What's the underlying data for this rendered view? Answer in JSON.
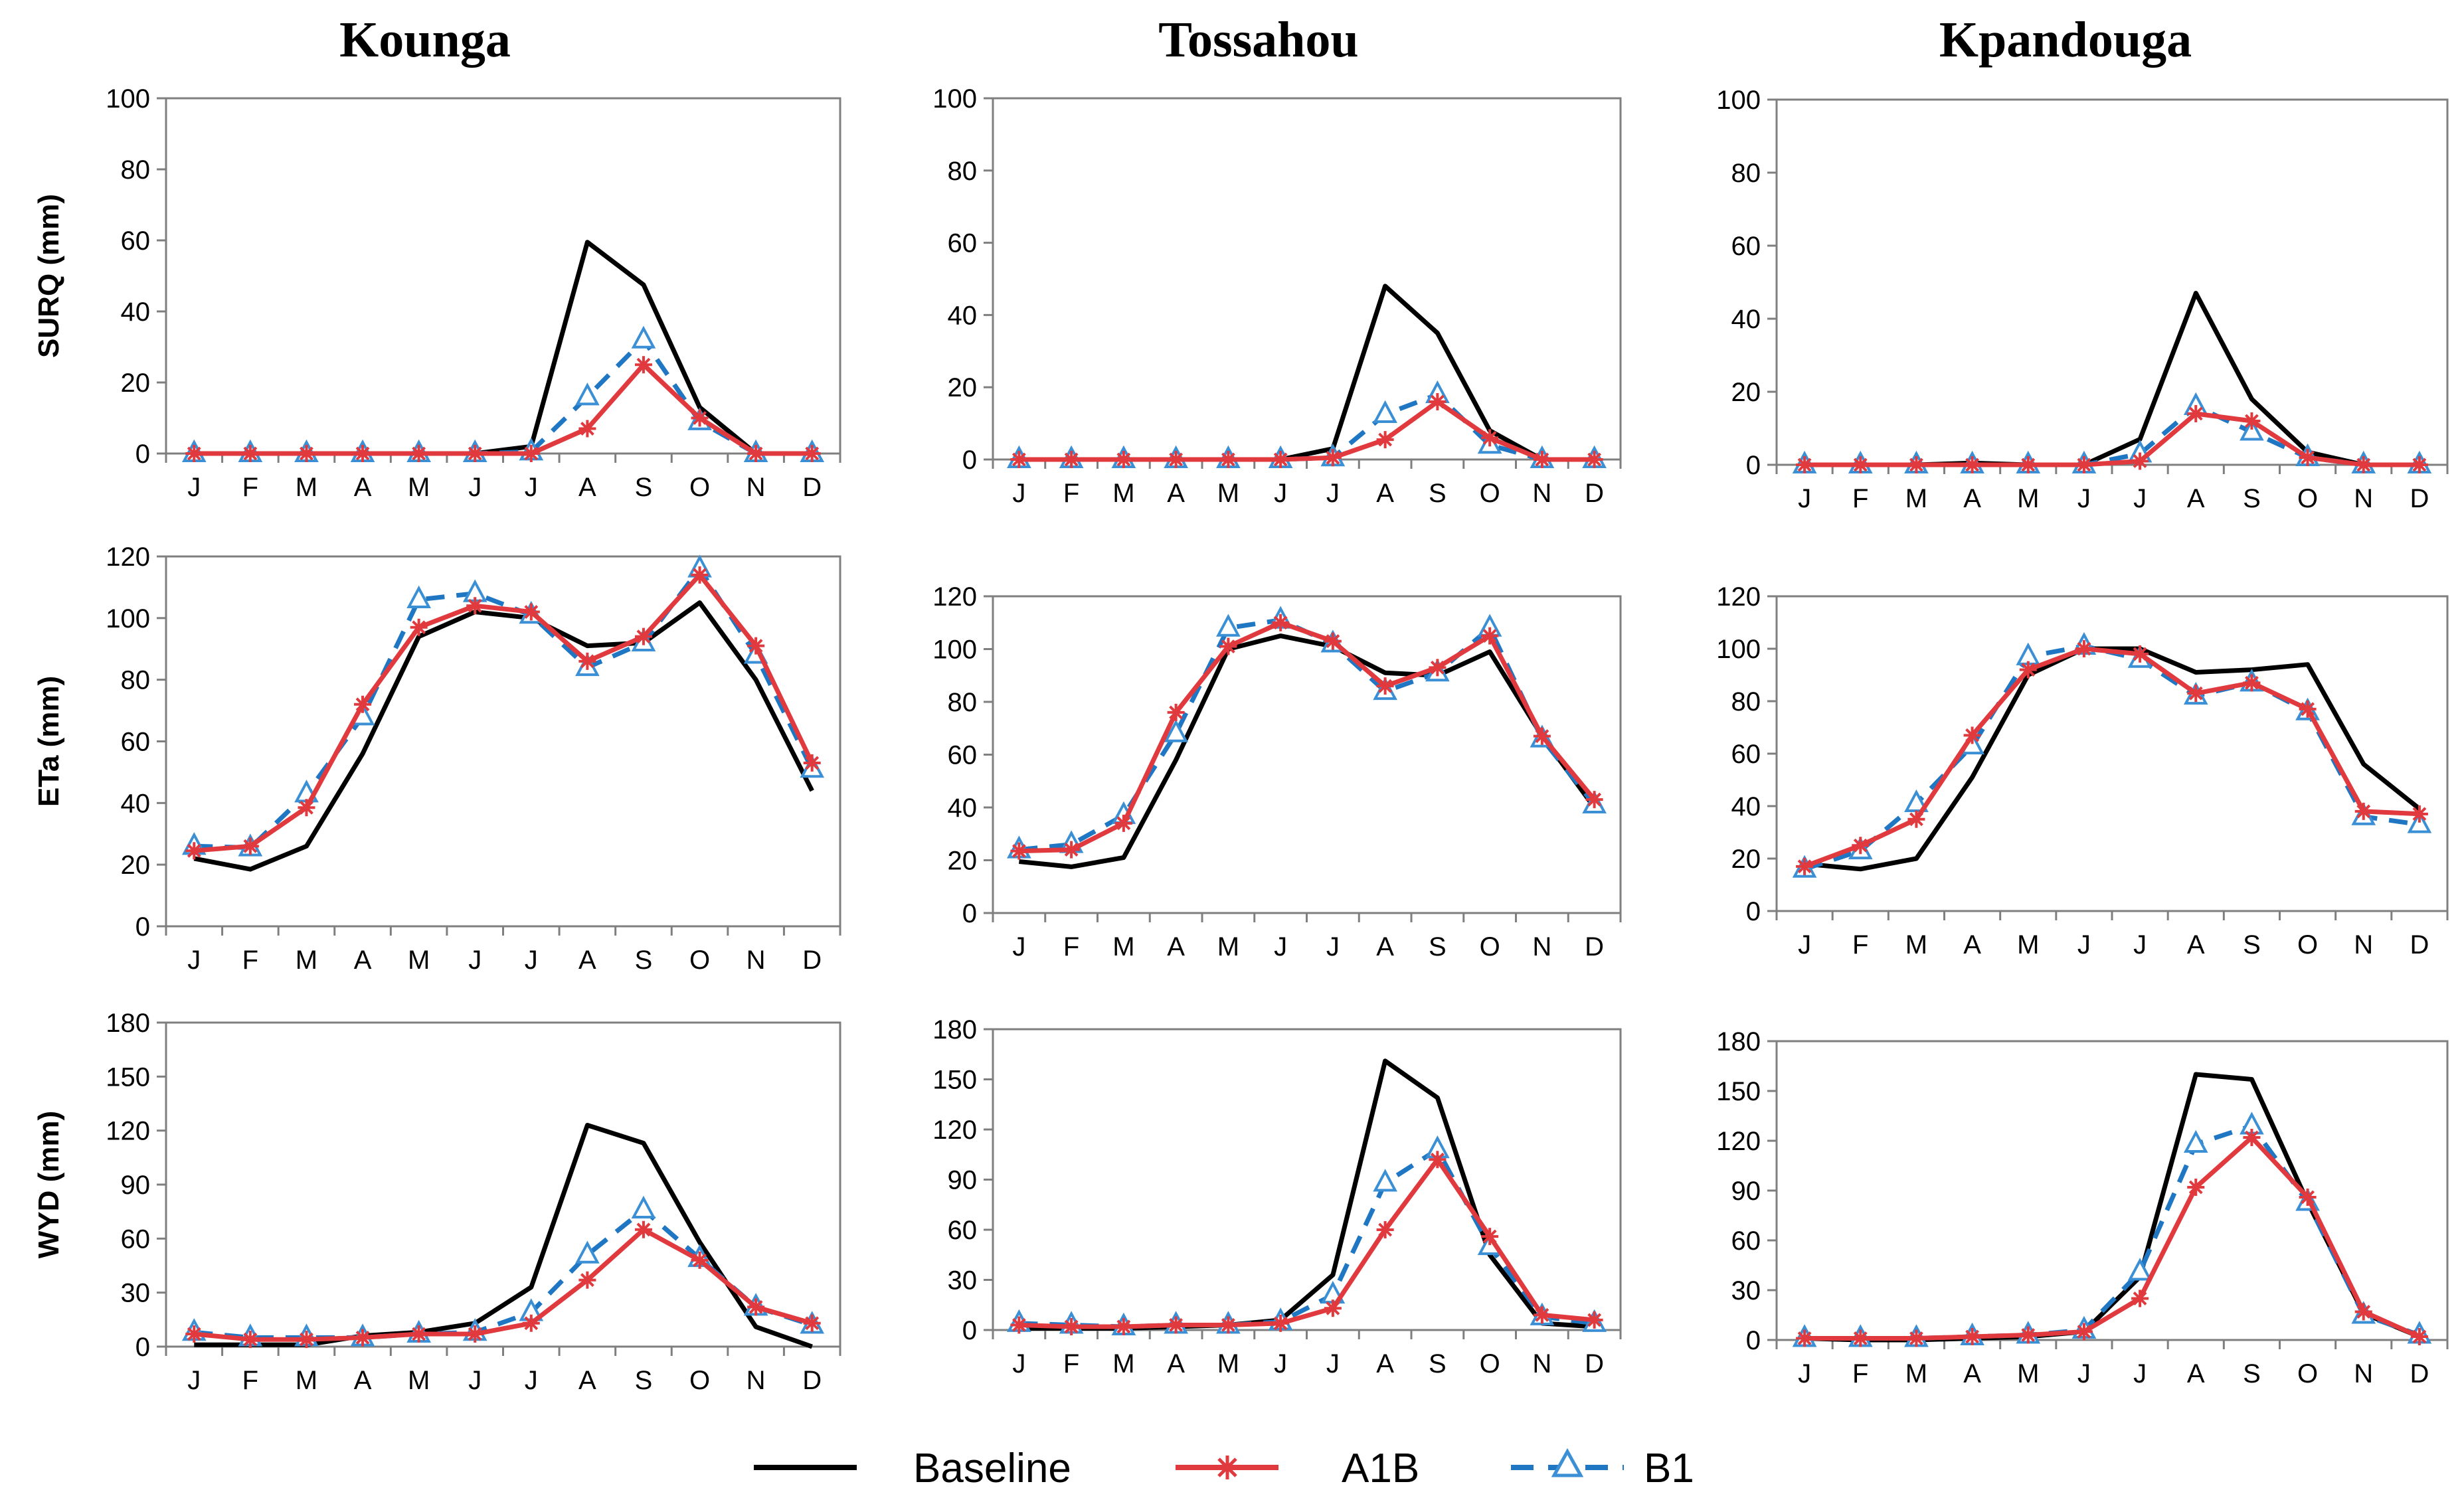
{
  "legend": {
    "entries": [
      {
        "key": "baseline",
        "label": "Baseline"
      },
      {
        "key": "a1b",
        "label": "A1B"
      },
      {
        "key": "b1",
        "label": "B1"
      }
    ]
  },
  "colors": {
    "baseline": "#000000",
    "a1b": "#e0393e",
    "b1": "#1f77c4"
  },
  "column_titles": [
    "Kounga",
    "Tossahou",
    "Kpandouga"
  ],
  "row_labels": [
    "SURQ (mm)",
    "ETa (mm)",
    "WYD (mm)"
  ],
  "chart_data": [
    {
      "type": "line",
      "station": "Kounga",
      "variable": "SURQ",
      "ylabel": "SURQ (mm)",
      "categories": [
        "J",
        "F",
        "M",
        "A",
        "M",
        "J",
        "J",
        "A",
        "S",
        "O",
        "N",
        "D"
      ],
      "ylim": [
        0,
        100
      ],
      "yticks": [
        0,
        20,
        40,
        60,
        80,
        100
      ],
      "series": [
        {
          "name": "Baseline",
          "values": [
            0,
            0,
            0,
            0,
            0,
            0,
            2,
            59.5,
            47.5,
            13,
            0,
            0
          ]
        },
        {
          "name": "A1B",
          "values": [
            0,
            0,
            0,
            0,
            0,
            0,
            0,
            7,
            25,
            10,
            0,
            0
          ]
        },
        {
          "name": "B1",
          "values": [
            0,
            0,
            0,
            0,
            0,
            0,
            0.5,
            16,
            32,
            9,
            0,
            0
          ]
        }
      ]
    },
    {
      "type": "line",
      "station": "Tossahou",
      "variable": "SURQ",
      "ylabel": "",
      "categories": [
        "J",
        "F",
        "M",
        "A",
        "M",
        "J",
        "J",
        "A",
        "S",
        "O",
        "N",
        "D"
      ],
      "ylim": [
        0,
        100
      ],
      "yticks": [
        0,
        20,
        40,
        60,
        80,
        100
      ],
      "series": [
        {
          "name": "Baseline",
          "values": [
            0,
            0,
            0,
            0,
            0,
            0,
            3,
            48,
            35,
            8,
            0,
            0
          ]
        },
        {
          "name": "A1B",
          "values": [
            0,
            0,
            0,
            0,
            0,
            0,
            0.5,
            5.5,
            16,
            6,
            0,
            0
          ]
        },
        {
          "name": "B1",
          "values": [
            0,
            0,
            0,
            0,
            0,
            0,
            0.5,
            12.5,
            18,
            4,
            0,
            0
          ]
        }
      ]
    },
    {
      "type": "line",
      "station": "Kpandouga",
      "variable": "SURQ",
      "ylabel": "",
      "categories": [
        "J",
        "F",
        "M",
        "A",
        "M",
        "J",
        "J",
        "A",
        "S",
        "O",
        "N",
        "D"
      ],
      "ylim": [
        0,
        100
      ],
      "yticks": [
        0,
        20,
        40,
        60,
        80,
        100
      ],
      "series": [
        {
          "name": "Baseline",
          "values": [
            0,
            0,
            0,
            0.5,
            0,
            0,
            7,
            47,
            18,
            3.5,
            0,
            0
          ]
        },
        {
          "name": "A1B",
          "values": [
            0,
            0,
            0,
            0,
            0,
            0,
            1,
            14,
            12,
            2,
            0,
            0
          ]
        },
        {
          "name": "B1",
          "values": [
            0,
            0,
            0,
            0,
            0,
            0,
            3,
            16,
            9,
            2,
            0,
            0
          ]
        }
      ]
    },
    {
      "type": "line",
      "station": "Kounga",
      "variable": "ETa",
      "ylabel": "ETa (mm)",
      "categories": [
        "J",
        "F",
        "M",
        "A",
        "M",
        "J",
        "J",
        "A",
        "S",
        "O",
        "N",
        "D"
      ],
      "ylim": [
        0,
        120
      ],
      "yticks": [
        0,
        20,
        40,
        60,
        80,
        100,
        120
      ],
      "series": [
        {
          "name": "Baseline",
          "values": [
            22,
            18.5,
            26,
            56,
            94,
            102,
            100,
            91,
            92,
            105,
            80,
            44
          ]
        },
        {
          "name": "A1B",
          "values": [
            24.5,
            26,
            38.5,
            72,
            97,
            104,
            102,
            86,
            94,
            114,
            91,
            53
          ]
        },
        {
          "name": "B1",
          "values": [
            26,
            25.5,
            43,
            68,
            106,
            108,
            101,
            84,
            92,
            116,
            88,
            51
          ]
        }
      ]
    },
    {
      "type": "line",
      "station": "Tossahou",
      "variable": "ETa",
      "ylabel": "",
      "categories": [
        "J",
        "F",
        "M",
        "A",
        "M",
        "J",
        "J",
        "A",
        "S",
        "O",
        "N",
        "D"
      ],
      "ylim": [
        0,
        120
      ],
      "yticks": [
        0,
        20,
        40,
        60,
        80,
        100,
        120
      ],
      "series": [
        {
          "name": "Baseline",
          "values": [
            19.5,
            17.5,
            21,
            58,
            100,
            105,
            101,
            91,
            90,
            99,
            67,
            40
          ]
        },
        {
          "name": "A1B",
          "values": [
            23.5,
            24,
            34,
            76,
            101,
            110,
            103,
            86,
            93,
            105,
            67,
            43
          ]
        },
        {
          "name": "B1",
          "values": [
            24,
            26,
            37,
            68,
            108,
            111,
            102,
            84,
            91,
            108,
            66,
            41
          ]
        }
      ]
    },
    {
      "type": "line",
      "station": "Kpandouga",
      "variable": "ETa",
      "ylabel": "",
      "categories": [
        "J",
        "F",
        "M",
        "A",
        "M",
        "J",
        "J",
        "A",
        "S",
        "O",
        "N",
        "D"
      ],
      "ylim": [
        0,
        120
      ],
      "yticks": [
        0,
        20,
        40,
        60,
        80,
        100,
        120
      ],
      "series": [
        {
          "name": "Baseline",
          "values": [
            18,
            16,
            20,
            51,
            90,
            100,
            100,
            91,
            92,
            94,
            56,
            39
          ]
        },
        {
          "name": "A1B",
          "values": [
            17,
            25,
            35,
            67,
            92,
            100,
            98,
            83,
            87,
            77,
            38,
            37
          ]
        },
        {
          "name": "B1",
          "values": [
            16,
            23,
            41,
            63,
            97,
            101,
            96,
            82,
            87,
            76,
            36,
            33
          ]
        }
      ]
    },
    {
      "type": "line",
      "station": "Kounga",
      "variable": "WYD",
      "ylabel": "WYD (mm)",
      "categories": [
        "J",
        "F",
        "M",
        "A",
        "M",
        "J",
        "J",
        "A",
        "S",
        "O",
        "N",
        "D"
      ],
      "ylim": [
        0,
        180
      ],
      "yticks": [
        0,
        30,
        60,
        90,
        120,
        150,
        180
      ],
      "series": [
        {
          "name": "Baseline",
          "values": [
            1,
            1,
            1,
            6,
            8,
            13,
            33,
            123,
            113,
            58,
            11,
            0
          ]
        },
        {
          "name": "A1B",
          "values": [
            7,
            4,
            4,
            5,
            7,
            7,
            13,
            37,
            65,
            48,
            22,
            13
          ]
        },
        {
          "name": "B1",
          "values": [
            8,
            5,
            5,
            5,
            7,
            8,
            19,
            51,
            76,
            49,
            22,
            12
          ]
        }
      ]
    },
    {
      "type": "line",
      "station": "Tossahou",
      "variable": "WYD",
      "ylabel": "",
      "categories": [
        "J",
        "F",
        "M",
        "A",
        "M",
        "J",
        "J",
        "A",
        "S",
        "O",
        "N",
        "D"
      ],
      "ylim": [
        0,
        180
      ],
      "yticks": [
        0,
        30,
        60,
        90,
        120,
        150,
        180
      ],
      "series": [
        {
          "name": "Baseline",
          "values": [
            1,
            1,
            1,
            2,
            3,
            6,
            33,
            161,
            139,
            45,
            4,
            2
          ]
        },
        {
          "name": "A1B",
          "values": [
            3,
            2,
            2,
            3,
            3,
            4,
            13,
            60,
            102,
            56,
            9,
            6
          ]
        },
        {
          "name": "B1",
          "values": [
            4,
            3,
            2,
            3,
            3,
            5,
            21,
            88,
            108,
            50,
            8,
            4
          ]
        }
      ]
    },
    {
      "type": "line",
      "station": "Kpandouga",
      "variable": "WYD",
      "ylabel": "",
      "categories": [
        "J",
        "F",
        "M",
        "A",
        "M",
        "J",
        "J",
        "A",
        "S",
        "O",
        "N",
        "D"
      ],
      "ylim": [
        0,
        180
      ],
      "yticks": [
        0,
        30,
        60,
        90,
        120,
        150,
        180
      ],
      "series": [
        {
          "name": "Baseline",
          "values": [
            1,
            0,
            0,
            1,
            2,
            5,
            38,
            160,
            157,
            83,
            16,
            2
          ]
        },
        {
          "name": "A1B",
          "values": [
            1,
            1,
            1,
            2,
            3,
            5,
            25,
            92,
            122,
            86,
            17,
            2
          ]
        },
        {
          "name": "B1",
          "values": [
            1,
            1,
            1,
            2,
            3,
            6,
            41,
            118,
            129,
            83,
            15,
            3
          ]
        }
      ]
    }
  ]
}
